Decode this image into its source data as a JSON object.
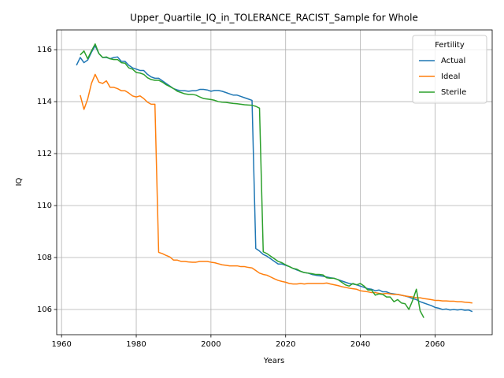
{
  "chart_data": {
    "type": "line",
    "title": "Upper_Quartile_IQ_in_TOLERANCE_RACIST_Sample for Whole",
    "xlabel": "Years",
    "ylabel": "IQ",
    "legend_title": "Fertility",
    "legend": "upper right",
    "grid": true,
    "xlim": [
      1958.7,
      2075.3
    ],
    "xticks": [
      1960,
      1980,
      2000,
      2020,
      2040,
      2060
    ],
    "ylim": [
      105.03,
      116.76
    ],
    "yticks": [
      106,
      108,
      110,
      112,
      114,
      116
    ],
    "x": [
      1964,
      1965,
      1966,
      1967,
      1968,
      1969,
      1970,
      1971,
      1972,
      1973,
      1974,
      1975,
      1976,
      1977,
      1978,
      1979,
      1980,
      1981,
      1982,
      1983,
      1984,
      1985,
      1986,
      1987,
      1988,
      1989,
      1990,
      1991,
      1992,
      1993,
      1994,
      1995,
      1996,
      1997,
      1998,
      1999,
      2000,
      2001,
      2002,
      2003,
      2004,
      2005,
      2006,
      2007,
      2008,
      2009,
      2010,
      2011,
      2012,
      2013,
      2014,
      2015,
      2016,
      2017,
      2018,
      2019,
      2020,
      2021,
      2022,
      2023,
      2024,
      2025,
      2026,
      2027,
      2028,
      2029,
      2030,
      2031,
      2032,
      2033,
      2034,
      2035,
      2036,
      2037,
      2038,
      2039,
      2040,
      2041,
      2042,
      2043,
      2044,
      2045,
      2046,
      2047,
      2048,
      2049,
      2050,
      2051,
      2052,
      2053,
      2054,
      2055,
      2056,
      2057,
      2058,
      2059,
      2060,
      2061,
      2062,
      2063,
      2064,
      2065,
      2066,
      2067,
      2068,
      2069,
      2070
    ],
    "series": [
      {
        "name": "Actual",
        "color": "#1f77b4",
        "values": [
          115.4,
          115.7,
          115.5,
          115.6,
          115.9,
          116.15,
          115.85,
          115.7,
          115.7,
          115.65,
          115.7,
          115.72,
          115.55,
          115.55,
          115.4,
          115.3,
          115.25,
          115.2,
          115.2,
          115.05,
          114.95,
          114.9,
          114.9,
          114.8,
          114.7,
          114.6,
          114.5,
          114.45,
          114.42,
          114.42,
          114.4,
          114.42,
          114.42,
          114.47,
          114.47,
          114.45,
          114.4,
          114.43,
          114.43,
          114.4,
          114.35,
          114.3,
          114.25,
          114.25,
          114.2,
          114.15,
          114.1,
          114.05,
          108.35,
          108.25,
          108.12,
          108.05,
          107.95,
          107.85,
          107.75,
          107.75,
          107.7,
          107.65,
          107.58,
          107.52,
          107.47,
          107.42,
          107.4,
          107.35,
          107.32,
          107.3,
          107.28,
          107.25,
          107.22,
          107.2,
          107.15,
          107.1,
          107.05,
          107.0,
          106.98,
          106.95,
          106.9,
          106.85,
          106.8,
          106.78,
          106.72,
          106.75,
          106.68,
          106.68,
          106.62,
          106.6,
          106.58,
          106.55,
          106.52,
          106.48,
          106.42,
          106.38,
          106.3,
          106.25,
          106.2,
          106.15,
          106.08,
          106.05,
          106.0,
          106.02,
          105.98,
          106.0,
          105.98,
          106.0,
          105.97,
          105.98,
          105.92
        ]
      },
      {
        "name": "Ideal",
        "color": "#ff7f0e",
        "values": [
          null,
          114.25,
          113.7,
          114.1,
          114.7,
          115.05,
          114.75,
          114.7,
          114.8,
          114.55,
          114.55,
          114.5,
          114.42,
          114.42,
          114.33,
          114.22,
          114.18,
          114.22,
          114.12,
          113.98,
          113.9,
          113.9,
          108.2,
          108.15,
          108.08,
          108.02,
          107.9,
          107.9,
          107.85,
          107.85,
          107.83,
          107.82,
          107.82,
          107.85,
          107.85,
          107.85,
          107.82,
          107.8,
          107.76,
          107.72,
          107.7,
          107.68,
          107.68,
          107.68,
          107.65,
          107.65,
          107.62,
          107.6,
          107.5,
          107.4,
          107.35,
          107.32,
          107.25,
          107.18,
          107.12,
          107.08,
          107.05,
          107.0,
          106.98,
          106.98,
          107.0,
          106.98,
          107.0,
          107.0,
          107.0,
          107.0,
          107.0,
          107.02,
          106.98,
          106.95,
          106.92,
          106.88,
          106.85,
          106.82,
          106.8,
          106.78,
          106.72,
          106.7,
          106.68,
          106.65,
          106.65,
          106.62,
          106.6,
          106.62,
          106.6,
          106.58,
          106.58,
          106.55,
          106.52,
          106.5,
          106.48,
          106.45,
          106.45,
          106.42,
          106.4,
          106.38,
          106.35,
          106.35,
          106.33,
          106.33,
          106.32,
          106.32,
          106.3,
          106.3,
          106.28,
          106.27,
          106.25
        ]
      },
      {
        "name": "Sterile",
        "color": "#2ca02c",
        "values": [
          null,
          115.8,
          115.95,
          115.65,
          115.95,
          116.22,
          115.85,
          115.7,
          115.72,
          115.65,
          115.62,
          115.62,
          115.5,
          115.48,
          115.3,
          115.25,
          115.12,
          115.1,
          115.05,
          114.92,
          114.85,
          114.82,
          114.82,
          114.75,
          114.65,
          114.58,
          114.5,
          114.4,
          114.35,
          114.3,
          114.28,
          114.28,
          114.25,
          114.18,
          114.12,
          114.1,
          114.08,
          114.05,
          114.0,
          113.98,
          113.97,
          113.95,
          113.93,
          113.92,
          113.9,
          113.88,
          113.87,
          113.86,
          113.82,
          113.75,
          108.22,
          108.15,
          108.05,
          107.95,
          107.85,
          107.8,
          107.72,
          107.65,
          107.58,
          107.55,
          107.47,
          107.42,
          107.4,
          107.38,
          107.35,
          107.35,
          107.33,
          107.22,
          107.2,
          107.2,
          107.15,
          107.05,
          106.95,
          106.9,
          107.0,
          106.95,
          107.0,
          106.9,
          106.75,
          106.75,
          106.55,
          106.6,
          106.58,
          106.48,
          106.48,
          106.3,
          106.38,
          106.25,
          106.22,
          106.0,
          106.35,
          106.78,
          105.95,
          105.68,
          null,
          null,
          null,
          null,
          null,
          null,
          null,
          null,
          null,
          null,
          null,
          null,
          null
        ]
      }
    ]
  }
}
